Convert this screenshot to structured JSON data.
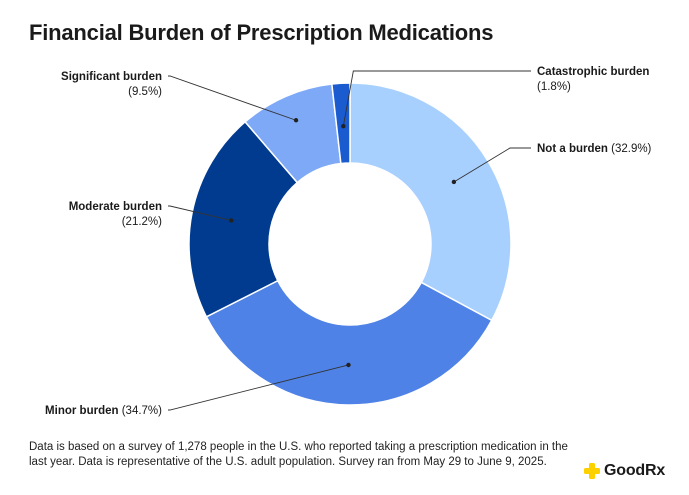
{
  "title": "Financial Burden of Prescription Medications",
  "chart_data": {
    "type": "pie",
    "title": "Financial Burden of Prescription Medications",
    "donut": true,
    "slices": [
      {
        "label": "Not a burden",
        "value_text": "(32.9%)",
        "value": 32.9,
        "color": "#a8d0ff"
      },
      {
        "label": "Minor burden",
        "value_text": "(34.7%)",
        "value": 34.7,
        "color": "#4e82e6"
      },
      {
        "label": "Moderate burden",
        "value_text": "(21.2%)",
        "value": 21.2,
        "color": "#003b8f"
      },
      {
        "label": "Significant burden",
        "value_text": "(9.5%)",
        "value": 9.5,
        "color": "#7ea9f7"
      },
      {
        "label": "Catastrophic burden",
        "value_text": "(1.8%)",
        "value": 1.8,
        "color": "#1a5bd0"
      }
    ]
  },
  "footnote": "Data is based on a survey of 1,278 people in the U.S. who reported taking a prescription medication in the last year. Data is representative of the U.S. adult population. Survey ran from May 29 to June 9, 2025.",
  "brand": {
    "name": "GoodRx",
    "icon": "goodrx-plus-icon",
    "color": "#fdd000"
  }
}
